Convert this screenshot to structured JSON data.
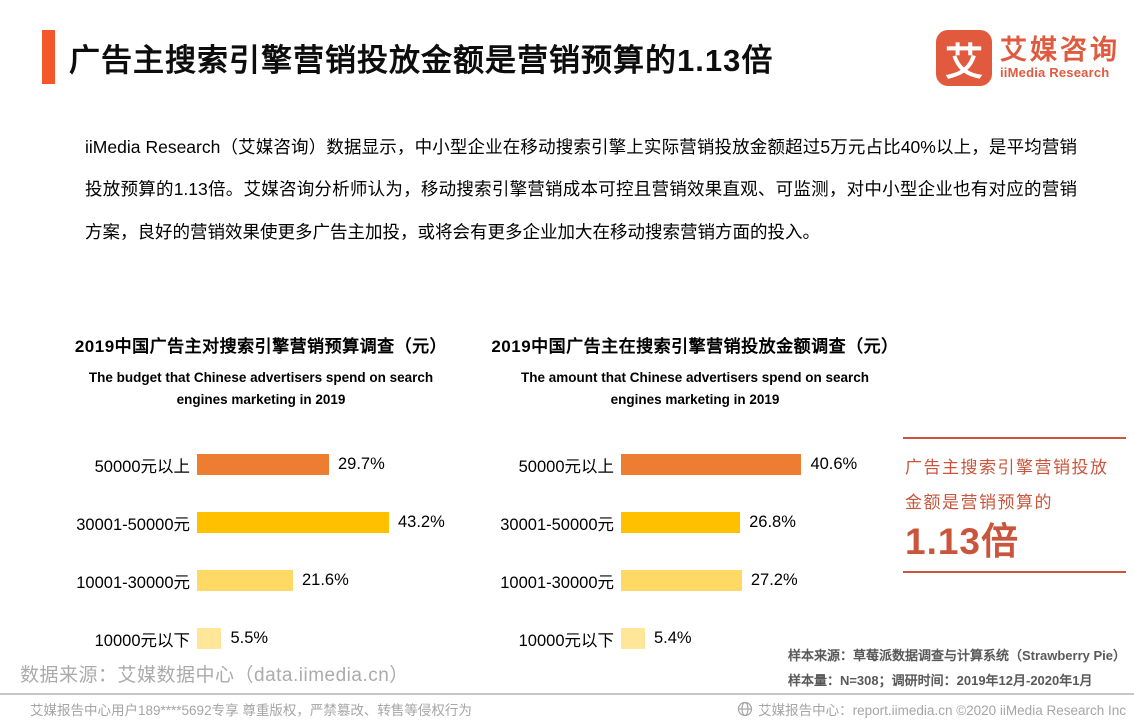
{
  "header": {
    "title": "广告主搜索引擎营销投放金额是营销预算的1.13倍",
    "accent_color": "#F4582A",
    "logo": {
      "icon_char": "艾",
      "name_cn": "艾媒咨询",
      "name_en": "iiMedia Research",
      "color": "#DE5B40"
    }
  },
  "intro": "iiMedia Research（艾媒咨询）数据显示，中小型企业在移动搜索引擎上实际营销投放金额超过5万元占比40%以上，是平均营销投放预算的1.13倍。艾媒咨询分析师认为，移动搜索引擎营销成本可控且营销效果直观、可监测，对中小型企业也有对应的营销方案，良好的营销效果使更多广告主加投，或将会有更多企业加大在移动搜索营销方面的投入。",
  "chart_data": [
    {
      "type": "bar",
      "orientation": "horizontal",
      "title": "2019中国广告主对搜索引擎营销预算调查（元）",
      "subtitle": "The budget that Chinese advertisers spend on search engines marketing in 2019",
      "categories": [
        "50000元以上",
        "30001-50000元",
        "10001-30000元",
        "10000元以下"
      ],
      "values": [
        29.7,
        43.2,
        21.6,
        5.5
      ],
      "value_labels": [
        "29.7%",
        "43.2%",
        "21.6%",
        "5.5%"
      ],
      "bar_colors": [
        "#ED7D31",
        "#FFC000",
        "#FFD966",
        "#FFE699"
      ],
      "xlim": [
        0,
        45
      ],
      "grid": false,
      "legend": false
    },
    {
      "type": "bar",
      "orientation": "horizontal",
      "title": "2019中国广告主在搜索引擎营销投放金额调查（元）",
      "subtitle": "The amount that Chinese advertisers spend on search engines marketing in 2019",
      "categories": [
        "50000元以上",
        "30001-50000元",
        "10001-30000元",
        "10000元以下"
      ],
      "values": [
        40.6,
        26.8,
        27.2,
        5.4
      ],
      "value_labels": [
        "40.6%",
        "26.8%",
        "27.2%",
        "5.4%"
      ],
      "bar_colors": [
        "#ED7D31",
        "#FFC000",
        "#FFD966",
        "#FFE699"
      ],
      "xlim": [
        0,
        45
      ],
      "grid": false,
      "legend": false
    }
  ],
  "callout": {
    "text": "广告主搜索引擎营销投放金额是营销预算的",
    "big": "1.13倍",
    "color": "#C9563C"
  },
  "sample_info": {
    "line1": "样本来源：草莓派数据调查与计算系统（Strawberry Pie）",
    "line2": "样本量：N=308；调研时间：2019年12月-2020年1月"
  },
  "data_source": "数据来源：艾媒数据中心（data.iimedia.cn）",
  "footer": {
    "left": "艾媒报告中心用户189****5692专享 尊重版权，严禁篡改、转售等侵权行为",
    "right": "艾媒报告中心：report.iimedia.cn  ©2020  iiMedia Research Inc"
  }
}
